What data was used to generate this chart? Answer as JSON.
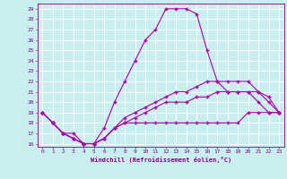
{
  "xlabel": "Windchill (Refroidissement éolien,°C)",
  "background_color": "#c8eef0",
  "line_color": "#aa00aa",
  "grid_color": "#ffffff",
  "x_hours": [
    0,
    1,
    2,
    3,
    4,
    5,
    6,
    7,
    8,
    9,
    10,
    11,
    12,
    13,
    14,
    15,
    16,
    17,
    18,
    19,
    20,
    21,
    22,
    23
  ],
  "series": {
    "temp": [
      19,
      18,
      17,
      17,
      16,
      16,
      17.5,
      20,
      22,
      24,
      26,
      27,
      29,
      29,
      29,
      28.5,
      25,
      22,
      21,
      21,
      21,
      20,
      19,
      19
    ],
    "windchill_a": [
      19,
      18,
      17,
      16.5,
      16,
      16,
      16.5,
      17.5,
      18,
      18,
      18,
      18,
      18,
      18,
      18,
      18,
      18,
      18,
      18,
      18,
      19,
      19,
      19,
      19
    ],
    "windchill_b": [
      19,
      18,
      17,
      16.5,
      16,
      16,
      16.5,
      17.5,
      18,
      18.5,
      19,
      19.5,
      20,
      20,
      20,
      20.5,
      20.5,
      21,
      21,
      21,
      21,
      21,
      20,
      19
    ],
    "windchill_c": [
      19,
      18,
      17,
      16.5,
      16,
      16,
      16.5,
      17.5,
      18.5,
      19,
      19.5,
      20,
      20.5,
      21,
      21,
      21.5,
      22,
      22,
      22,
      22,
      22,
      21,
      20.5,
      19
    ]
  },
  "ylim": [
    15.7,
    29.5
  ],
  "xlim": [
    -0.5,
    23.5
  ],
  "yticks": [
    16,
    17,
    18,
    19,
    20,
    21,
    22,
    23,
    24,
    25,
    26,
    27,
    28,
    29
  ],
  "xticks": [
    0,
    1,
    2,
    3,
    4,
    5,
    6,
    7,
    8,
    9,
    10,
    11,
    12,
    13,
    14,
    15,
    16,
    17,
    18,
    19,
    20,
    21,
    22,
    23
  ]
}
